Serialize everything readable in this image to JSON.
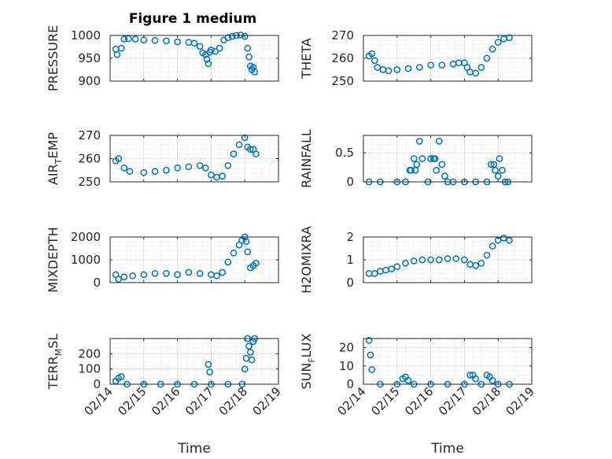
{
  "figure": {
    "title": "Figure 1 medium"
  },
  "colors": {
    "marker": "#0072BD",
    "axes": "#262626",
    "grid": "#cfcfcf",
    "background": "#ffffff"
  },
  "chart_data": [
    {
      "type": "scatter",
      "title": "Figure 1 medium",
      "ylabel": "PRESSURE",
      "xlabel": "",
      "ylim": [
        900,
        1000
      ],
      "yticks": [
        "900",
        "950",
        "1000"
      ],
      "show_xticklabels": false,
      "x": [
        "02/14 04:00",
        "02/14 05:00",
        "02/14 08:00",
        "02/14 10:00",
        "02/14 13:00",
        "02/14 18:00",
        "02/15 00:00",
        "02/15 08:00",
        "02/15 16:00",
        "02/16 00:00",
        "02/16 08:00",
        "02/16 12:00",
        "02/16 16:00",
        "02/16 18:00",
        "02/16 20:00",
        "02/16 21:00",
        "02/16 22:00",
        "02/16 23:00",
        "02/17 00:00",
        "02/17 03:00",
        "02/17 06:00",
        "02/17 09:00",
        "02/17 12:00",
        "02/17 15:00",
        "02/17 18:00",
        "02/17 21:00",
        "02/18 00:00",
        "02/18 02:00",
        "02/18 03:00",
        "02/18 04:00",
        "02/18 05:00",
        "02/18 06:00",
        "02/18 07:00"
      ],
      "y": [
        970,
        958,
        972,
        992,
        993,
        992,
        990,
        989,
        988,
        986,
        985,
        983,
        976,
        962,
        958,
        948,
        938,
        963,
        968,
        965,
        972,
        990,
        995,
        998,
        1000,
        1001,
        998,
        972,
        953,
        933,
        925,
        930,
        920
      ]
    },
    {
      "type": "scatter",
      "ylabel": "THETA",
      "xlabel": "",
      "ylim": [
        250,
        270
      ],
      "yticks": [
        "250",
        "260",
        "270"
      ],
      "show_xticklabels": false,
      "x": [
        "02/14 04:00",
        "02/14 06:00",
        "02/14 08:00",
        "02/14 10:00",
        "02/14 14:00",
        "02/14 18:00",
        "02/15 00:00",
        "02/15 08:00",
        "02/15 16:00",
        "02/16 00:00",
        "02/16 08:00",
        "02/16 16:00",
        "02/16 20:00",
        "02/17 00:00",
        "02/17 02:00",
        "02/17 04:00",
        "02/17 08:00",
        "02/17 12:00",
        "02/17 16:00",
        "02/17 20:00",
        "02/18 00:00",
        "02/18 04:00",
        "02/18 08:00"
      ],
      "y": [
        261,
        262,
        259,
        256,
        255,
        254.5,
        255,
        255.5,
        256,
        257,
        257,
        257.5,
        258,
        258,
        256,
        254,
        253.5,
        256,
        260,
        264,
        267,
        268.5,
        269
      ]
    },
    {
      "type": "scatter",
      "ylabel": "AIR_TEMP",
      "xlabel": "",
      "ylim": [
        250,
        270
      ],
      "yticks": [
        "250",
        "260",
        "270"
      ],
      "show_xticklabels": false,
      "x": [
        "02/14 04:00",
        "02/14 06:00",
        "02/14 10:00",
        "02/14 14:00",
        "02/15 00:00",
        "02/15 08:00",
        "02/15 16:00",
        "02/16 00:00",
        "02/16 08:00",
        "02/16 16:00",
        "02/16 20:00",
        "02/17 00:00",
        "02/17 04:00",
        "02/17 08:00",
        "02/17 12:00",
        "02/17 16:00",
        "02/17 20:00",
        "02/18 00:00",
        "02/18 02:00",
        "02/18 04:00",
        "02/18 06:00",
        "02/18 08:00"
      ],
      "y": [
        259,
        260,
        256,
        254.5,
        254,
        254.5,
        255,
        256,
        256.5,
        257,
        256,
        253,
        252,
        252.5,
        257,
        262,
        266,
        269,
        265,
        264,
        264,
        262
      ]
    },
    {
      "type": "scatter",
      "ylabel": "RAINFALL",
      "xlabel": "",
      "ylim": [
        0,
        0.8
      ],
      "yticks": [
        "0",
        "0.5"
      ],
      "show_xticklabels": false,
      "x": [
        "02/14 04:00",
        "02/14 12:00",
        "02/15 00:00",
        "02/15 06:00",
        "02/15 09:00",
        "02/15 10:00",
        "02/15 12:00",
        "02/15 13:00",
        "02/15 14:00",
        "02/15 16:00",
        "02/15 18:00",
        "02/15 22:00",
        "02/16 00:00",
        "02/16 02:00",
        "02/16 03:00",
        "02/16 04:00",
        "02/16 06:00",
        "02/16 08:00",
        "02/16 10:00",
        "02/16 12:00",
        "02/16 16:00",
        "02/17 00:00",
        "02/17 08:00",
        "02/17 16:00",
        "02/17 19:00",
        "02/17 21:00",
        "02/17 22:00",
        "02/18 00:00",
        "02/18 01:00",
        "02/18 03:00",
        "02/18 05:00",
        "02/18 07:00"
      ],
      "y": [
        0,
        0,
        0,
        0,
        0.2,
        0.2,
        0.4,
        0.2,
        0.3,
        0.7,
        0.4,
        0,
        0.4,
        0.4,
        0.4,
        0.2,
        0.7,
        0.3,
        0.1,
        0,
        0,
        0,
        0,
        0,
        0.3,
        0.3,
        0.2,
        0.1,
        0.4,
        0.2,
        0,
        0
      ]
    },
    {
      "type": "scatter",
      "ylabel": "MIXDEPTH",
      "xlabel": "",
      "ylim": [
        0,
        2000
      ],
      "yticks": [
        "0",
        "1000",
        "2000"
      ],
      "show_xticklabels": false,
      "x": [
        "02/14 04:00",
        "02/14 06:00",
        "02/14 10:00",
        "02/14 16:00",
        "02/15 00:00",
        "02/15 08:00",
        "02/15 16:00",
        "02/16 00:00",
        "02/16 08:00",
        "02/16 16:00",
        "02/17 00:00",
        "02/17 04:00",
        "02/17 08:00",
        "02/17 12:00",
        "02/17 16:00",
        "02/17 20:00",
        "02/17 22:00",
        "02/18 00:00",
        "02/18 01:00",
        "02/18 02:00",
        "02/18 04:00",
        "02/18 06:00",
        "02/18 08:00"
      ],
      "y": [
        350,
        150,
        250,
        300,
        350,
        400,
        400,
        350,
        450,
        400,
        350,
        300,
        450,
        900,
        1300,
        1650,
        1850,
        2000,
        1800,
        1350,
        650,
        750,
        850
      ]
    },
    {
      "type": "scatter",
      "ylabel": "H2OMIXRA",
      "xlabel": "",
      "ylim": [
        0,
        2
      ],
      "yticks": [
        "0",
        "1",
        "2"
      ],
      "show_xticklabels": false,
      "x": [
        "02/14 04:00",
        "02/14 08:00",
        "02/14 12:00",
        "02/14 16:00",
        "02/14 20:00",
        "02/15 00:00",
        "02/15 06:00",
        "02/15 12:00",
        "02/15 18:00",
        "02/16 00:00",
        "02/16 06:00",
        "02/16 12:00",
        "02/16 18:00",
        "02/17 00:00",
        "02/17 04:00",
        "02/17 08:00",
        "02/17 12:00",
        "02/17 16:00",
        "02/17 20:00",
        "02/18 00:00",
        "02/18 04:00",
        "02/18 08:00"
      ],
      "y": [
        0.4,
        0.4,
        0.5,
        0.55,
        0.6,
        0.7,
        0.85,
        0.95,
        1.0,
        1.0,
        1.0,
        1.05,
        1.05,
        1.0,
        0.8,
        0.75,
        0.85,
        1.2,
        1.6,
        1.85,
        1.95,
        1.85
      ]
    },
    {
      "type": "scatter",
      "ylabel": "TERR_MSL",
      "xlabel": "Time",
      "ylim": [
        0,
        300
      ],
      "yticks": [
        "0",
        "100",
        "200"
      ],
      "xticks": [
        "02/14",
        "02/15",
        "02/16",
        "02/17",
        "02/18",
        "02/19"
      ],
      "show_xticklabels": true,
      "x": [
        "02/14 04:00",
        "02/14 06:00",
        "02/14 08:00",
        "02/14 12:00",
        "02/15 00:00",
        "02/15 12:00",
        "02/16 00:00",
        "02/16 12:00",
        "02/16 22:00",
        "02/16 23:00",
        "02/17 00:00",
        "02/17 12:00",
        "02/17 22:00",
        "02/18 00:00",
        "02/18 01:00",
        "02/18 02:00",
        "02/18 03:00",
        "02/18 04:00",
        "02/18 05:00",
        "02/18 06:00",
        "02/18 07:00"
      ],
      "y": [
        20,
        40,
        50,
        0,
        0,
        0,
        0,
        0,
        130,
        80,
        0,
        0,
        0,
        100,
        170,
        300,
        250,
        210,
        160,
        280,
        300
      ]
    },
    {
      "type": "scatter",
      "ylabel": "SUN_FLUX",
      "xlabel": "Time",
      "ylim": [
        0,
        25
      ],
      "yticks": [
        "0",
        "10",
        "20"
      ],
      "xticks": [
        "02/14",
        "02/15",
        "02/16",
        "02/17",
        "02/18",
        "02/19"
      ],
      "show_xticklabels": true,
      "x": [
        "02/14 04:00",
        "02/14 05:00",
        "02/14 06:00",
        "02/14 12:00",
        "02/15 00:00",
        "02/15 04:00",
        "02/15 06:00",
        "02/15 08:00",
        "02/15 12:00",
        "02/16 00:00",
        "02/16 12:00",
        "02/17 00:00",
        "02/17 04:00",
        "02/17 06:00",
        "02/17 08:00",
        "02/17 12:00",
        "02/17 16:00",
        "02/17 18:00",
        "02/17 20:00",
        "02/18 00:00",
        "02/18 08:00"
      ],
      "y": [
        24,
        16,
        8,
        0,
        0,
        3,
        4,
        2,
        0,
        0,
        0,
        0,
        5,
        5,
        3,
        0,
        5,
        4,
        2,
        0,
        0
      ]
    }
  ]
}
